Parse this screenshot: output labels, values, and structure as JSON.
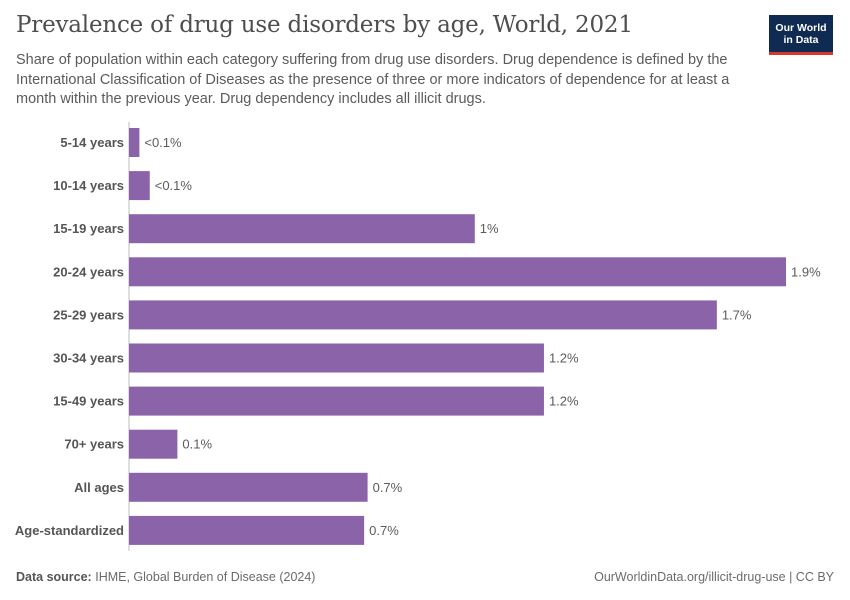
{
  "header": {
    "title": "Prevalence of drug use disorders by age, World, 2021",
    "subtitle": "Share of population within each category suffering from drug use disorders. Drug dependence is defined by the International Classification of Diseases as the presence of three or more indicators of dependence for at least a month within the previous year. Drug dependency includes all illicit drugs."
  },
  "logo": {
    "line1": "Our World",
    "line2": "in Data",
    "bg_color": "#0f2b52",
    "accent_color": "#d8372d"
  },
  "chart_data": {
    "type": "bar",
    "orientation": "horizontal",
    "title": "Prevalence of drug use disorders by age, World, 2021",
    "categories": [
      "5-14 years",
      "10-14 years",
      "15-19 years",
      "20-24 years",
      "25-29 years",
      "30-34 years",
      "15-49 years",
      "70+ years",
      "All ages",
      "Age-standardized"
    ],
    "values": [
      0.03,
      0.06,
      1.0,
      1.9,
      1.7,
      1.2,
      1.2,
      0.14,
      0.69,
      0.68
    ],
    "labels": [
      "<0.1%",
      "<0.1%",
      "1%",
      "1.9%",
      "1.7%",
      "1.2%",
      "1.2%",
      "0.1%",
      "0.7%",
      "0.7%"
    ],
    "unit": "%",
    "xlim": [
      0,
      1.9
    ],
    "grid": false,
    "legend": "none",
    "bar_color": "#8a63a8"
  },
  "footer": {
    "source_label": "Data source:",
    "source": "IHME, Global Burden of Disease (2024)",
    "credit": "OurWorldinData.org/illicit-drug-use | CC BY"
  }
}
